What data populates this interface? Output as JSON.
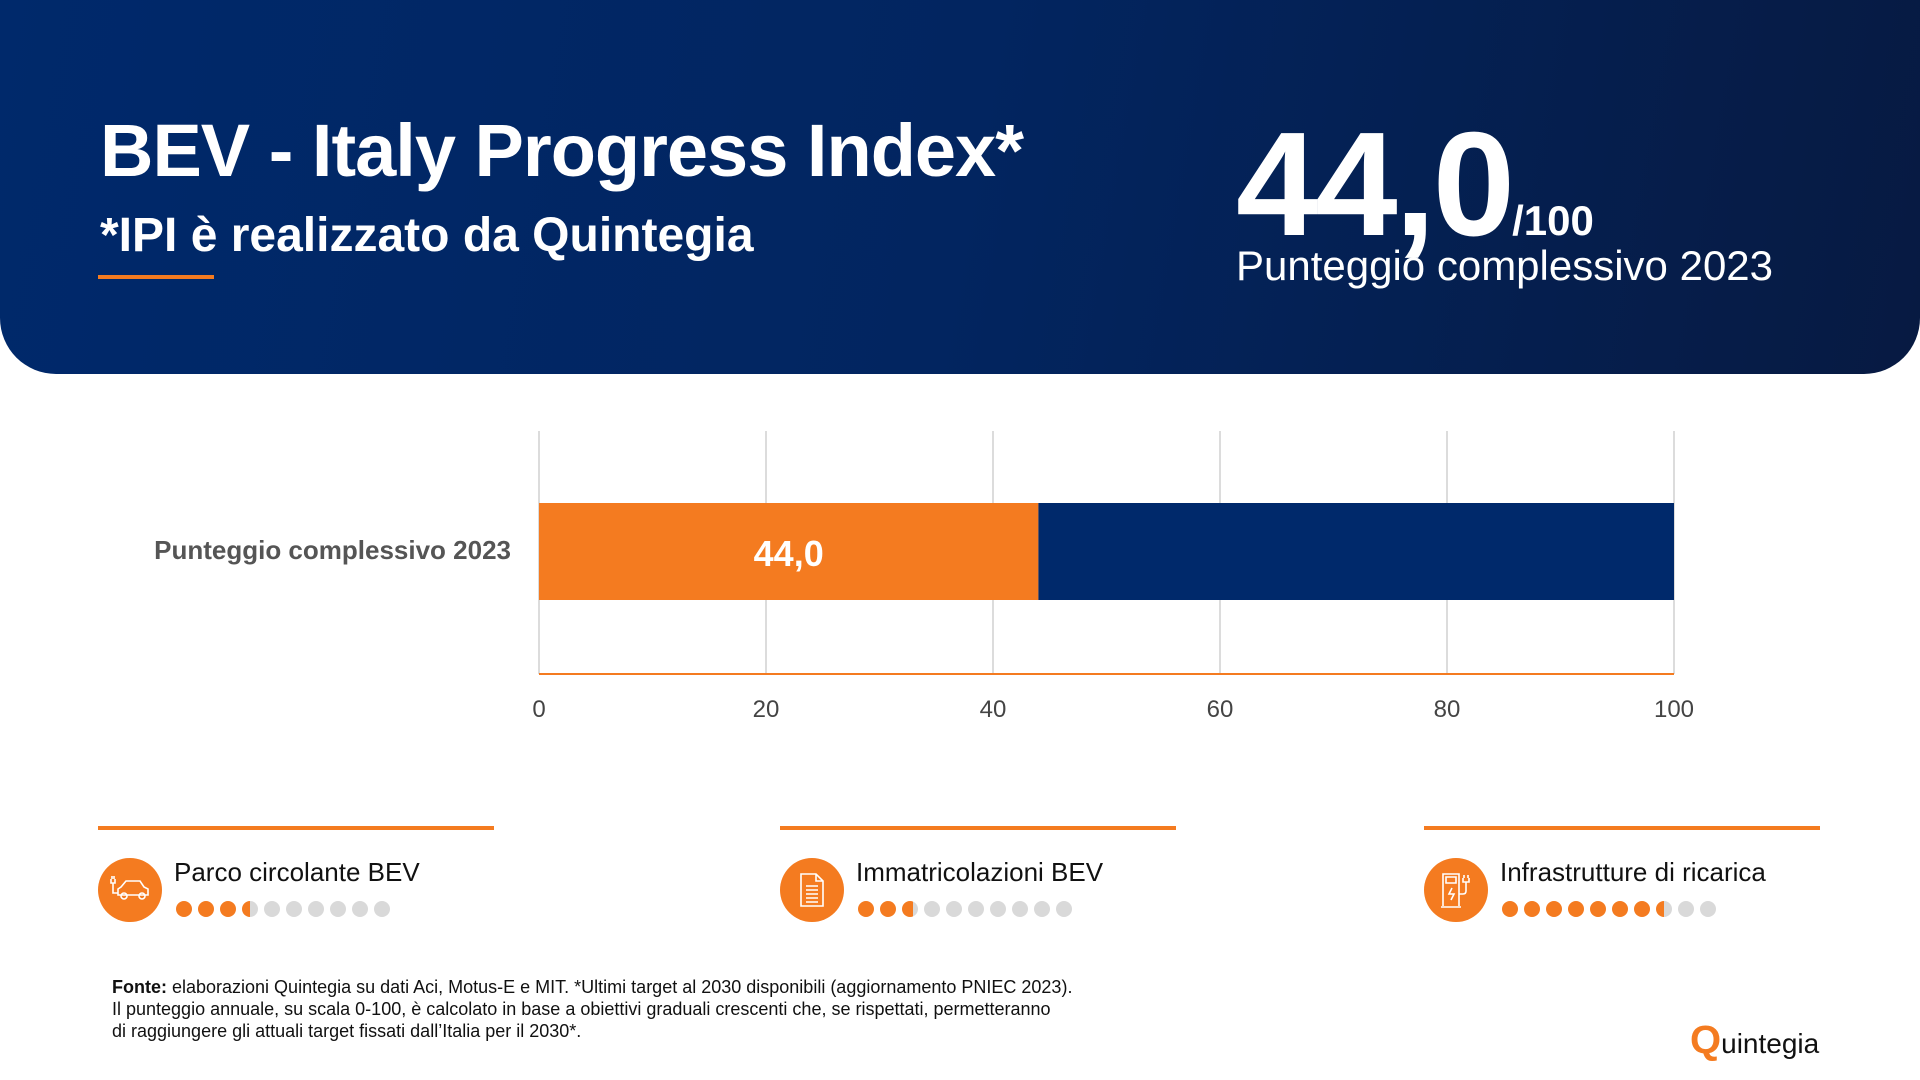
{
  "header": {
    "title": "BEV - Italy Progress Index*",
    "subtitle": "*IPI è realizzato da Quintegia",
    "score": "44,0",
    "score_out_of": "/100",
    "score_label": "Punteggio complessivo 2023"
  },
  "colors": {
    "accent": "#f47b20",
    "navy": "#00296b",
    "track": "#d9d9d9"
  },
  "chart_data": {
    "type": "bar",
    "orientation": "horizontal",
    "stacked": true,
    "categories": [
      "Punteggio complessivo 2023"
    ],
    "series": [
      {
        "values": [
          44.0
        ],
        "color": "#f47b20"
      },
      {
        "values": [
          56.0
        ],
        "color": "#00296b"
      }
    ],
    "data_labels": [
      "44,0"
    ],
    "xlim": [
      0,
      100
    ],
    "xticks": [
      "0",
      "20",
      "40",
      "60",
      "80",
      "100"
    ],
    "grid": true
  },
  "items": [
    {
      "label": "Parco circolante BEV",
      "icon": "electric-car-icon",
      "rating": 3.5,
      "max": 10
    },
    {
      "label": "Immatricolazioni BEV",
      "icon": "document-icon",
      "rating": 2.7,
      "max": 10
    },
    {
      "label": "Infrastrutture di ricarica",
      "icon": "charging-station-icon",
      "rating": 7.5,
      "max": 10
    }
  ],
  "footer": {
    "bold": "Fonte:",
    "line1": " elaborazioni Quintegia su dati Aci, Motus-E e MIT. *Ultimi target al 2030 disponibili (aggiornamento PNIEC 2023).",
    "line2": "Il punteggio annuale, su scala 0-100, è calcolato in base a obiettivi graduali crescenti che, se rispettati, permetteranno",
    "line3": "di raggiungere gli attuali target fissati dall’Italia per il 2030*."
  },
  "logo": {
    "text": "Quintegia"
  }
}
